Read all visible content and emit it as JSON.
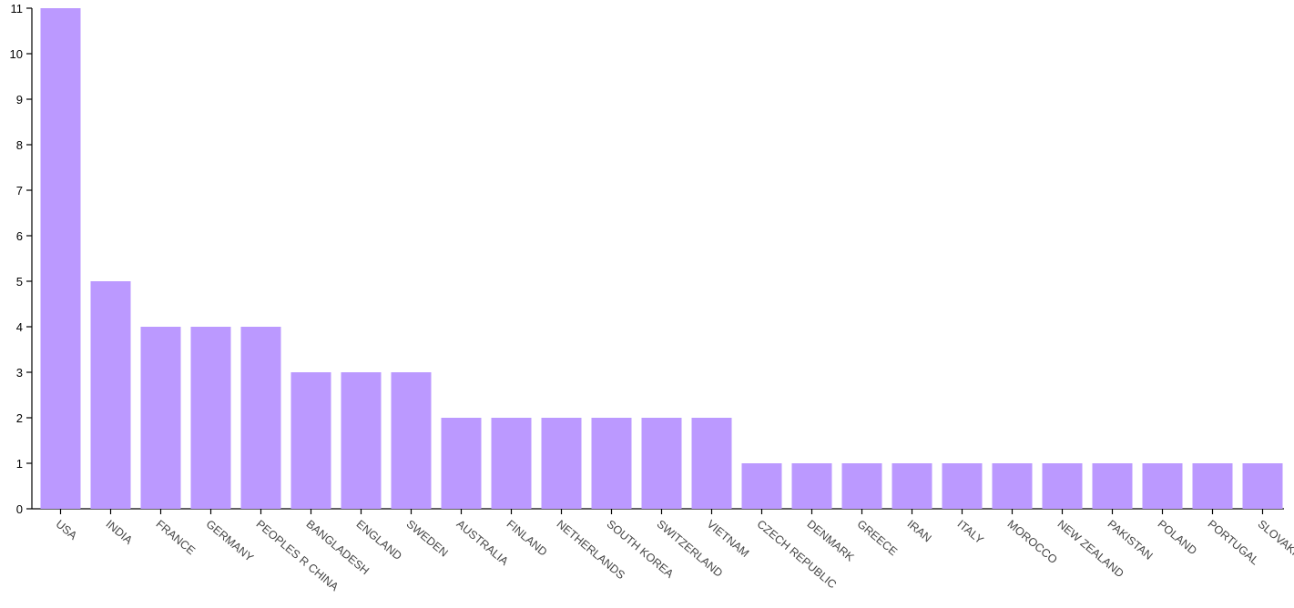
{
  "chart_data": {
    "type": "bar",
    "categories": [
      "USA",
      "INDIA",
      "FRANCE",
      "GERMANY",
      "PEOPLES R CHINA",
      "BANGLADESH",
      "ENGLAND",
      "SWEDEN",
      "AUSTRALIA",
      "FINLAND",
      "NETHERLANDS",
      "SOUTH KOREA",
      "SWITZERLAND",
      "VIETNAM",
      "CZECH REPUBLIC",
      "DENMARK",
      "GREECE",
      "IRAN",
      "ITALY",
      "MOROCCO",
      "NEW ZEALAND",
      "PAKISTAN",
      "POLAND",
      "PORTUGAL",
      "SLOVAKIA"
    ],
    "values": [
      11,
      5,
      4,
      4,
      4,
      3,
      3,
      3,
      2,
      2,
      2,
      2,
      2,
      2,
      1,
      1,
      1,
      1,
      1,
      1,
      1,
      1,
      1,
      1,
      1
    ],
    "color": "#bb99ff",
    "ylim": [
      0,
      11
    ],
    "yticks": [
      0,
      1,
      2,
      3,
      4,
      5,
      6,
      7,
      8,
      9,
      10,
      11
    ],
    "grid": false
  }
}
